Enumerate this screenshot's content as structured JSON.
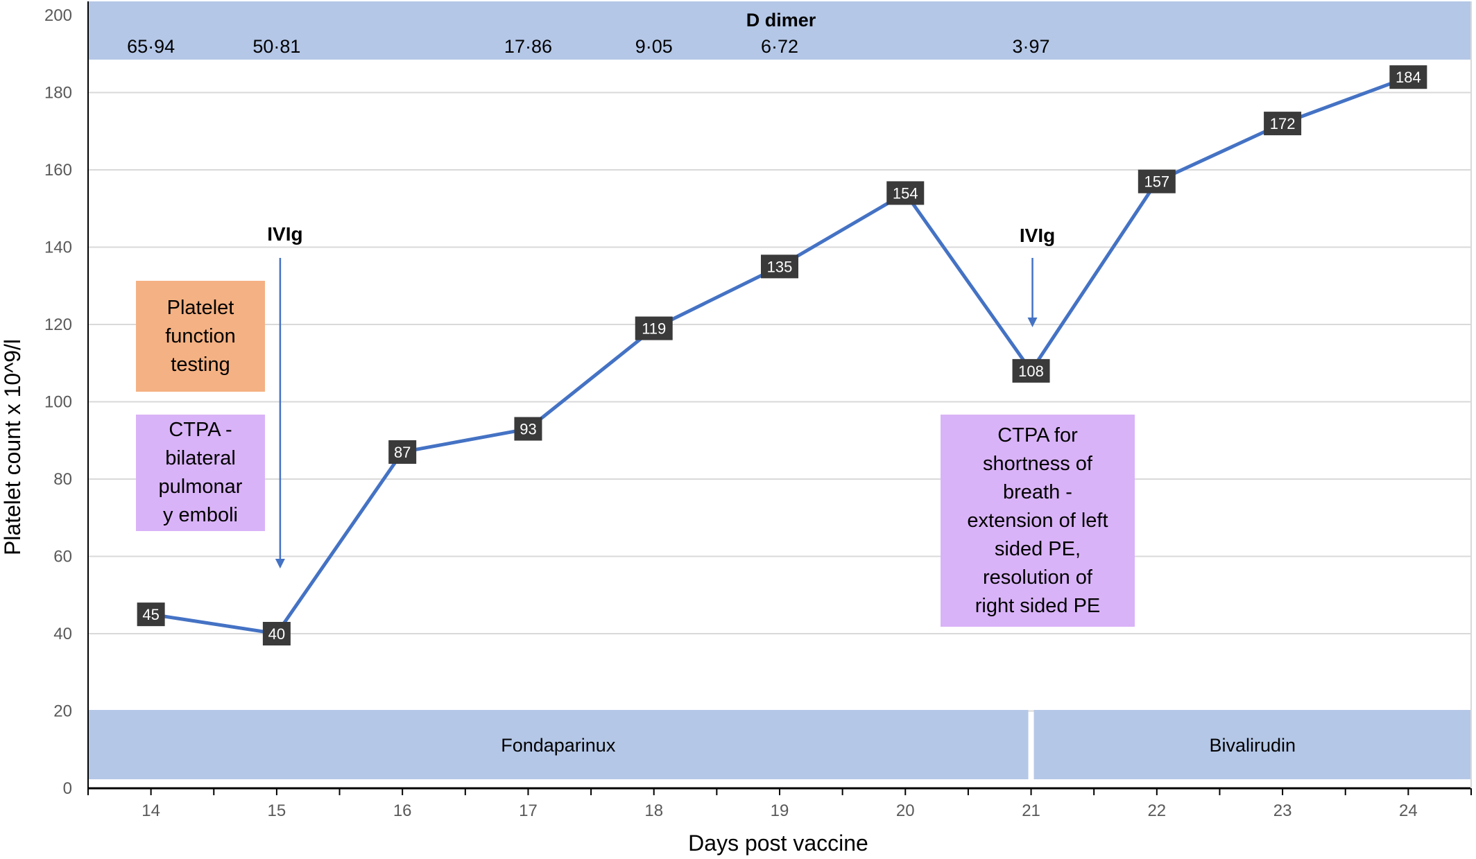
{
  "chart_data": {
    "type": "line",
    "xlabel": "Days post vaccine",
    "ylabel": "Platelet count x 10^9/l",
    "x": [
      14,
      15,
      16,
      17,
      18,
      19,
      20,
      21,
      22,
      23,
      24
    ],
    "values": [
      45,
      40,
      87,
      93,
      119,
      135,
      154,
      108,
      157,
      172,
      184
    ],
    "data_labels": [
      "45",
      "40",
      "87",
      "93",
      "119",
      "135",
      "154",
      "108",
      "157",
      "172",
      "184"
    ],
    "x_ticks": [
      "14",
      "15",
      "16",
      "17",
      "18",
      "19",
      "20",
      "21",
      "22",
      "23",
      "24"
    ],
    "y_ticks": [
      "0",
      "20",
      "40",
      "60",
      "80",
      "100",
      "120",
      "140",
      "160",
      "180",
      "200"
    ],
    "ylim": [
      0,
      200
    ],
    "xlim": [
      13.5,
      24.5
    ],
    "grid": true,
    "line_color": "#4472C4",
    "label_box_color": "#3a3a3a",
    "d_dimer": {
      "title": "D dimer",
      "band_color": "#b4c7e7",
      "values": [
        {
          "day": 14,
          "text": "65·94"
        },
        {
          "day": 15,
          "text": "50·81"
        },
        {
          "day": 17,
          "text": "17·86"
        },
        {
          "day": 18,
          "text": "9·05"
        },
        {
          "day": 19,
          "text": "6·72"
        },
        {
          "day": 21,
          "text": "3·97"
        }
      ]
    },
    "treatments": [
      {
        "label": "Fondaparinux",
        "from_day": 13.5,
        "to_day": 21
      },
      {
        "label": "Bivalirudin",
        "from_day": 21,
        "to_day": 24.5
      }
    ],
    "treatment_color": "#b4c7e7",
    "arrows": [
      {
        "label": "IVIg",
        "day": 15
      },
      {
        "label": "IVIg",
        "day": 21
      }
    ],
    "annotations": [
      {
        "text": "Platelet\nfunction\ntesting",
        "color": "#f4b183"
      },
      {
        "text": "CTPA -\nbilateral\npulmonar\ny emboli",
        "color": "#d9b3f7"
      },
      {
        "text": "CTPA for\nshortness of\nbreath -\nextension of left\nsided PE,\nresolution of\nright sided PE",
        "color": "#d9b3f7"
      }
    ]
  }
}
